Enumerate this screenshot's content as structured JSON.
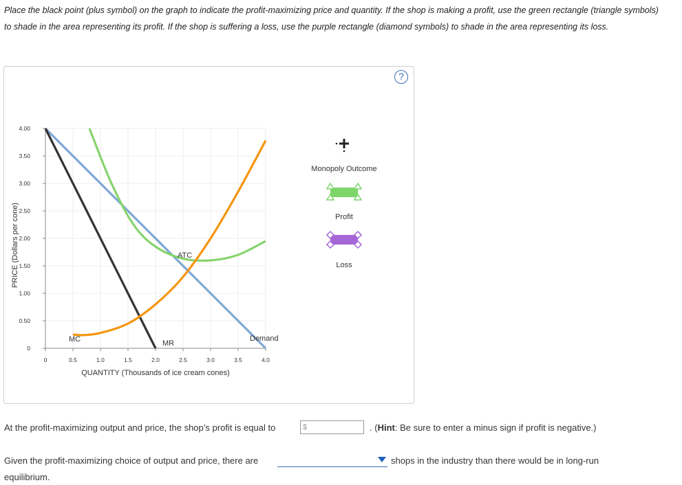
{
  "instructions": "Place the black point (plus symbol) on the graph to indicate the profit-maximizing price and quantity. If the shop is making a profit, use the green rectangle (triangle symbols) to shade in the area representing its profit. If the shop is suffering a loss, use the purple rectangle (diamond symbols) to shade in the area representing its loss.",
  "help_label": "?",
  "graph": {
    "y_axis_label": "PRICE (Dollars per cone)",
    "x_axis_label": "QUANTITY (Thousands of ice cream cones)",
    "y_ticks": [
      "4.00",
      "3.50",
      "3.00",
      "2.50",
      "2.00",
      "1.50",
      "1.00",
      "0.50",
      "0"
    ],
    "x_ticks": [
      "0",
      "0.5",
      "1.0",
      "1.5",
      "2.0",
      "2.5",
      "3.0",
      "3.5",
      "4.0"
    ],
    "curve_labels": {
      "atc": "ATC",
      "mc": "MC",
      "mr": "MR",
      "demand": "Demand"
    },
    "colors": {
      "demand": "#7fa7d4",
      "mr": "#333333",
      "atc": "#86d46e",
      "mc": "#f5950f",
      "profit": "#7ed66b",
      "loss": "#a566d6"
    },
    "curves": {
      "demand": [
        [
          0,
          4.0
        ],
        [
          4.0,
          0
        ]
      ],
      "mr": [
        [
          0,
          4.0
        ],
        [
          2.0,
          0
        ]
      ],
      "atc": [
        [
          0.8,
          4.0
        ],
        [
          1.2,
          3.0
        ],
        [
          1.6,
          2.25
        ],
        [
          2.0,
          1.85
        ],
        [
          2.5,
          1.63
        ],
        [
          3.0,
          1.6
        ],
        [
          3.5,
          1.7
        ],
        [
          4.0,
          1.95
        ]
      ],
      "mc": [
        [
          0.5,
          0.25
        ],
        [
          0.7,
          0.24
        ],
        [
          1.0,
          0.28
        ],
        [
          1.5,
          0.45
        ],
        [
          2.0,
          0.8
        ],
        [
          2.5,
          1.3
        ],
        [
          3.0,
          2.0
        ],
        [
          3.5,
          2.85
        ],
        [
          4.0,
          3.78
        ]
      ]
    }
  },
  "palette": {
    "monopoly_label": "Monopoly Outcome",
    "profit_label": "Profit",
    "loss_label": "Loss"
  },
  "question1": {
    "prefix": "At the profit-maximizing output and price, the shop’s profit is equal to",
    "input_placeholder": "$",
    "hint_bold": "Hint",
    "hint_text": ": Be sure to enter a minus sign if profit is negative.)",
    "hint_open": ". ("
  },
  "question2": {
    "prefix": "Given the profit-maximizing choice of output and price, there are",
    "suffix": "shops in the industry than there would be in long-run",
    "suffix2": "equilibrium.",
    "selected": ""
  }
}
